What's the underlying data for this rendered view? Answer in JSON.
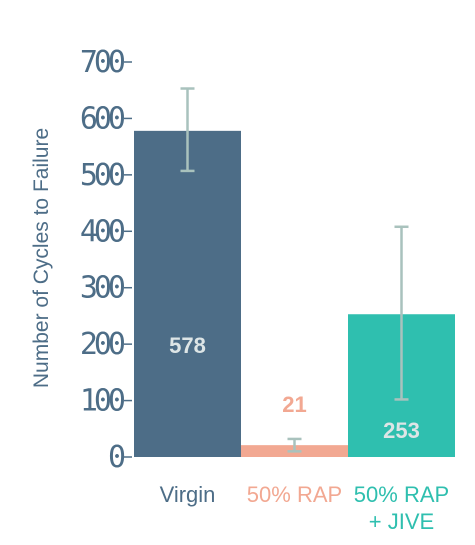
{
  "chart_data": {
    "type": "bar",
    "categories": [
      "Virgin",
      "50% RAP",
      "50% RAP\n+ JIVE"
    ],
    "values": [
      578,
      21,
      253
    ],
    "error_bars": [
      {
        "low": 507,
        "high": 653
      },
      {
        "low": 10,
        "high": 32
      },
      {
        "low": 102,
        "high": 408
      }
    ],
    "data_labels": [
      "578",
      "21",
      "253"
    ],
    "ylabel": "Number of Cycles to Failure",
    "xlabel": "",
    "ylim": [
      0,
      700
    ],
    "yticks": [
      0,
      100,
      200,
      300,
      400,
      500,
      600,
      700
    ],
    "grid": false,
    "bar_colors": [
      "#4d6d87",
      "#f2a892",
      "#2fbfaf"
    ],
    "category_label_colors": [
      "#4d6d87",
      "#f2a892",
      "#2fbfaf"
    ],
    "data_label_colors": [
      "#dde5e6",
      "#f2a892",
      "#dde5e6"
    ],
    "error_bar_color": "#a9c2bd",
    "axis_color": "#4d6d87"
  }
}
